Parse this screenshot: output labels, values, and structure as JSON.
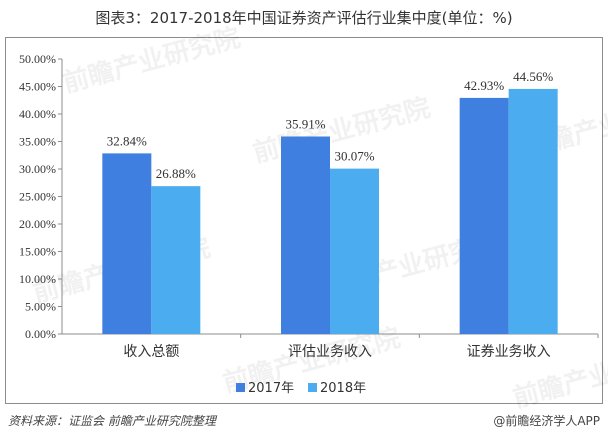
{
  "title": "图表3：2017-2018年中国证券资产评估行业集中度(单位：%)",
  "chart_data": {
    "type": "bar",
    "categories": [
      "收入总额",
      "评估业务收入",
      "证券业务收入"
    ],
    "series": [
      {
        "name": "2017年",
        "values": [
          32.84,
          35.91,
          42.93
        ],
        "labels": [
          "32.84%",
          "35.91%",
          "42.93%"
        ],
        "color": "#3e7fdf"
      },
      {
        "name": "2018年",
        "values": [
          26.88,
          30.07,
          44.56
        ],
        "labels": [
          "26.88%",
          "30.07%",
          "44.56%"
        ],
        "color": "#4badef"
      }
    ],
    "ylim": [
      0,
      50
    ],
    "yticks": [
      "0.00%",
      "5.00%",
      "10.00%",
      "15.00%",
      "20.00%",
      "25.00%",
      "30.00%",
      "35.00%",
      "40.00%",
      "45.00%",
      "50.00%"
    ],
    "legend_position": "bottom",
    "grid": false
  },
  "footer": {
    "source": "资料来源：证监会 前瞻产业研究院整理",
    "brand": "@前瞻经济学人APP"
  },
  "watermark": "前瞻产业研究院"
}
